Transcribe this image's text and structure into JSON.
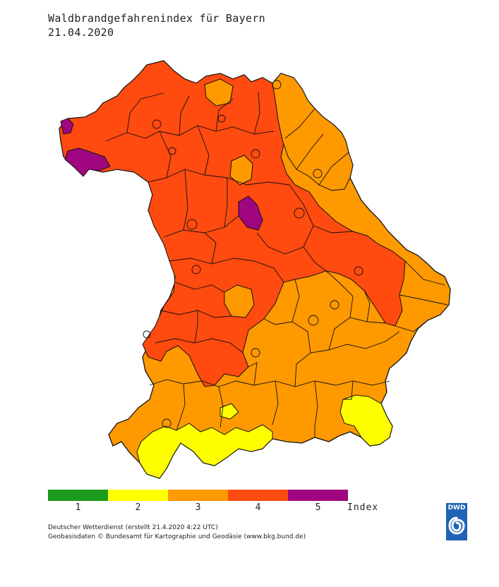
{
  "header": {
    "title": "Waldbrandgefahrenindex für Bayern",
    "date": "21.04.2020"
  },
  "legend": {
    "classes": [
      {
        "label": "1",
        "color": "#1a9a1a"
      },
      {
        "label": "2",
        "color": "#ffff00"
      },
      {
        "label": "3",
        "color": "#ff9900"
      },
      {
        "label": "4",
        "color": "#ff4a10"
      },
      {
        "label": "5",
        "color": "#a0067f"
      }
    ],
    "unit": "Index"
  },
  "map": {
    "region": "Bayern",
    "dominant_class_colors": [
      "#ffff00",
      "#ff9900",
      "#ff4a10",
      "#a0067f"
    ]
  },
  "footer": {
    "line1": "Deutscher Wetterdienst (erstellt 21.4.2020 4:22 UTC)",
    "line2": "Geobasisdaten © Bundesamt für Kartographie und Geodäsie (www.bkg.bund.de)"
  },
  "logo": {
    "text": "DWD",
    "icon": "dwd-swirl-icon",
    "color": "#1d64b5"
  }
}
